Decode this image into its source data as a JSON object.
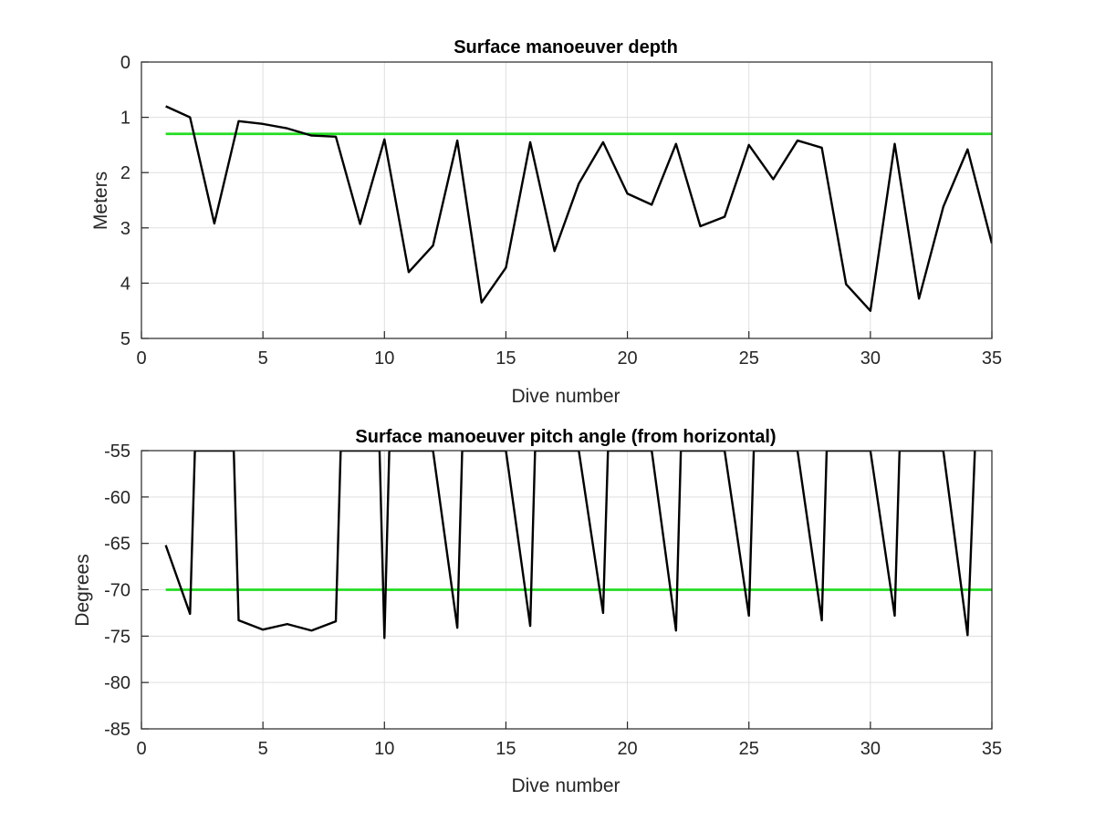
{
  "colors": {
    "series": "#000000",
    "reference": "#22dd22",
    "grid": "#dfdfdf",
    "axis": "#262626"
  },
  "chart_data": [
    {
      "type": "line",
      "title": "Surface manoeuver depth",
      "xlabel": "Dive number",
      "ylabel": "Meters",
      "xlim": [
        0,
        35
      ],
      "ylim": [
        0,
        5
      ],
      "y_reversed": true,
      "grid": true,
      "xticks": [
        0,
        5,
        10,
        15,
        20,
        25,
        30,
        35
      ],
      "yticks": [
        0,
        1,
        2,
        3,
        4,
        5
      ],
      "series": [
        {
          "x": [
            1,
            2,
            3,
            4,
            5,
            6,
            7,
            8,
            9,
            10,
            11,
            12,
            13,
            14,
            15,
            16,
            17,
            18,
            19,
            20,
            21,
            22,
            23,
            24,
            25,
            26,
            27,
            28,
            29,
            30,
            31,
            32,
            33,
            34,
            35
          ],
          "values": [
            0.8,
            1.0,
            2.92,
            1.07,
            1.12,
            1.2,
            1.33,
            1.35,
            2.93,
            1.4,
            3.8,
            3.32,
            1.42,
            4.35,
            3.72,
            1.45,
            3.42,
            2.2,
            1.45,
            2.38,
            2.58,
            1.48,
            2.97,
            2.8,
            1.5,
            2.12,
            1.42,
            1.55,
            4.02,
            4.5,
            1.48,
            4.28,
            2.62,
            1.58,
            3.28
          ]
        },
        {
          "x": [
            1,
            35
          ],
          "values": [
            1.3,
            1.3
          ]
        }
      ]
    },
    {
      "type": "line",
      "title": "Surface manoeuver pitch angle (from horizontal)",
      "xlabel": "Dive number",
      "ylabel": "Degrees",
      "xlim": [
        0,
        35
      ],
      "ylim": [
        -85,
        -55
      ],
      "grid": true,
      "xticks": [
        0,
        5,
        10,
        15,
        20,
        25,
        30,
        35
      ],
      "yticks": [
        -55,
        -60,
        -65,
        -70,
        -75,
        -80,
        -85
      ],
      "series": [
        {
          "x": [
            1,
            2,
            2.2,
            3.8,
            4,
            5,
            6,
            7,
            8,
            8.2,
            9.8,
            10,
            10.2,
            11.8,
            12,
            13,
            13.2,
            14.8,
            15,
            16,
            16.2,
            17.8,
            18,
            19,
            19.2,
            20.8,
            21,
            22,
            22.2,
            23.8,
            24,
            25,
            25.2,
            26.8,
            27,
            28,
            28.2,
            29.8,
            30,
            31,
            31.2,
            32.8,
            33,
            34,
            34.3
          ],
          "values": [
            -65.2,
            -72.6,
            -55,
            -55,
            -73.3,
            -74.3,
            -73.7,
            -74.4,
            -73.4,
            -55,
            -55,
            -75.2,
            -55,
            -55,
            -55,
            -74.1,
            -55,
            -55,
            -55,
            -73.9,
            -55,
            -55,
            -55,
            -72.5,
            -55,
            -55,
            -55,
            -74.4,
            -55,
            -55,
            -55,
            -72.8,
            -55,
            -55,
            -55,
            -73.3,
            -55,
            -55,
            -55,
            -72.8,
            -55,
            -55,
            -55,
            -74.9,
            -55
          ]
        },
        {
          "x": [
            1,
            35
          ],
          "values": [
            -70,
            -70
          ]
        }
      ]
    }
  ]
}
